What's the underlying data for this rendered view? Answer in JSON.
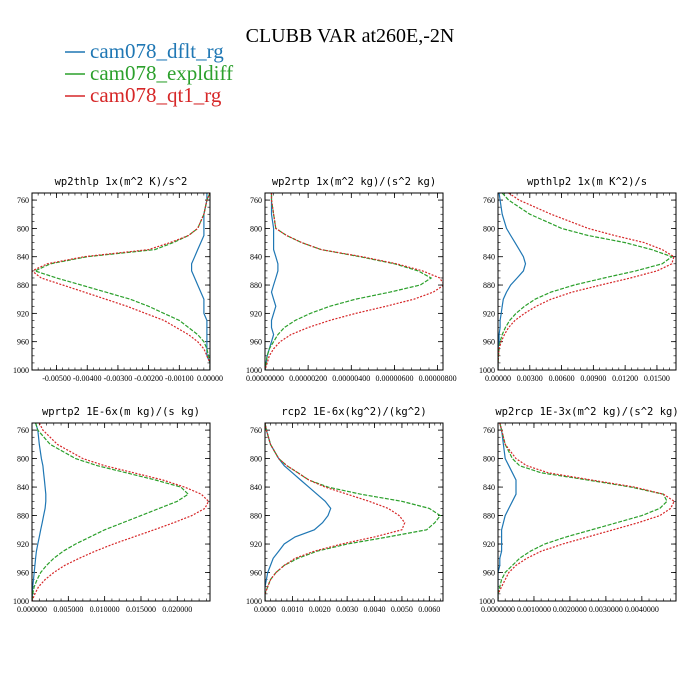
{
  "title": "CLUBB VAR at260E,-2N",
  "colors": {
    "dflt": "#1f77b4",
    "expl": "#2ca02c",
    "qt1": "#d62728"
  },
  "legend": [
    {
      "key": "dflt",
      "label": "cam078_dflt_rg"
    },
    {
      "key": "expl",
      "label": "cam078_expldiff"
    },
    {
      "key": "qt1",
      "label": "cam078_qt1_rg"
    }
  ],
  "chart_data": [
    {
      "type": "line",
      "title": "wp2thlp   1x(m^2 K)/s^2",
      "ylim": [
        1000,
        750
      ],
      "yticks": [
        "760",
        "800",
        "840",
        "880",
        "920",
        "960",
        "1000"
      ],
      "xlim": [
        -0.0058,
        0.0
      ],
      "xticks": [
        "-0.00500",
        "-0.00400",
        "-0.00300",
        "-0.00200",
        "-0.00100",
        "0.00000"
      ],
      "y": [
        750,
        760,
        780,
        800,
        810,
        820,
        830,
        840,
        850,
        860,
        870,
        880,
        890,
        900,
        910,
        920,
        930,
        940,
        950,
        960,
        970,
        980,
        990,
        1000
      ],
      "series": [
        {
          "key": "dflt",
          "values": [
            -0.0001,
            -0.0001,
            -0.0002,
            -0.0002,
            -0.0002,
            -0.0003,
            -0.0004,
            -0.0005,
            -0.0006,
            -0.0006,
            -0.0005,
            -0.0004,
            -0.0003,
            -0.0002,
            -0.0002,
            -0.0002,
            -0.0001,
            -0.0001,
            -0.0001,
            -0.0001,
            -0.0001,
            -0.0001,
            0.0,
            0.0
          ]
        },
        {
          "key": "expl",
          "values": [
            0.0,
            -0.0001,
            -0.0002,
            -0.0004,
            -0.0007,
            -0.0012,
            -0.0018,
            -0.004,
            -0.0052,
            -0.0057,
            -0.005,
            -0.0042,
            -0.0034,
            -0.0026,
            -0.002,
            -0.0015,
            -0.001,
            -0.0007,
            -0.0004,
            -0.0002,
            -0.0001,
            -5e-05,
            0.0,
            0.0
          ]
        },
        {
          "key": "qt1",
          "values": [
            0.0,
            -0.0001,
            -0.0002,
            -0.0004,
            -0.0007,
            -0.0013,
            -0.002,
            -0.0041,
            -0.0053,
            -0.0058,
            -0.0055,
            -0.0048,
            -0.0041,
            -0.0034,
            -0.0027,
            -0.0021,
            -0.0015,
            -0.0011,
            -0.0007,
            -0.0004,
            -0.0002,
            -0.0001,
            0.0,
            0.0
          ]
        }
      ]
    },
    {
      "type": "line",
      "title": "wp2rtp   1x(m^2 kg)/(s^2 kg)",
      "ylim": [
        1000,
        750
      ],
      "yticks": [
        "760",
        "800",
        "840",
        "880",
        "920",
        "960",
        "1000"
      ],
      "xlim": [
        0.0,
        8.25e-06
      ],
      "xticks": [
        "0.00000000",
        "0.00000200",
        "0.00000400",
        "0.00000600",
        "0.00000800"
      ],
      "y": [
        750,
        760,
        780,
        800,
        810,
        820,
        830,
        840,
        850,
        860,
        870,
        880,
        890,
        900,
        910,
        920,
        930,
        940,
        950,
        960,
        970,
        980,
        990,
        1000
      ],
      "series": [
        {
          "key": "dflt",
          "values": [
            3e-07,
            3e-07,
            3e-07,
            4e-07,
            4e-07,
            4e-07,
            4e-07,
            5e-07,
            6e-07,
            6e-07,
            5e-07,
            4e-07,
            3e-07,
            4e-07,
            5e-07,
            4e-07,
            3e-07,
            3e-07,
            4e-07,
            3e-07,
            2e-07,
            1e-07,
            5e-08,
            0.0
          ]
        },
        {
          "key": "expl",
          "values": [
            3e-07,
            3e-07,
            4e-07,
            5e-07,
            1e-06,
            1.7e-06,
            2.6e-06,
            4.4e-06,
            6e-06,
            7.1e-06,
            7.7e-06,
            7.2e-06,
            5.8e-06,
            4.2e-06,
            3e-06,
            2.1e-06,
            1.4e-06,
            9e-07,
            6e-07,
            4e-07,
            2e-07,
            1e-07,
            5e-08,
            0.0
          ]
        },
        {
          "key": "qt1",
          "values": [
            3e-07,
            3e-07,
            4e-07,
            5e-07,
            1e-06,
            1.7e-06,
            2.6e-06,
            4.5e-06,
            6.1e-06,
            7.3e-06,
            8.1e-06,
            8.3e-06,
            7.8e-06,
            6.9e-06,
            5.6e-06,
            4.2e-06,
            3e-06,
            2e-06,
            1.2e-06,
            7e-07,
            4e-07,
            2e-07,
            1e-07,
            0.0
          ]
        }
      ]
    },
    {
      "type": "line",
      "title": "wpthlp2   1x(m K^2)/s",
      "ylim": [
        1000,
        750
      ],
      "yticks": [
        "760",
        "800",
        "840",
        "880",
        "920",
        "960",
        "1000"
      ],
      "xlim": [
        0.0,
        0.0168
      ],
      "xticks": [
        "0.00000",
        "0.00300",
        "0.00600",
        "0.00900",
        "0.01200",
        "0.01500"
      ],
      "y": [
        750,
        760,
        780,
        800,
        810,
        820,
        830,
        840,
        850,
        860,
        870,
        880,
        890,
        900,
        910,
        920,
        930,
        940,
        950,
        960,
        970,
        980,
        990,
        1000
      ],
      "series": [
        {
          "key": "dflt",
          "values": [
            0.0001,
            0.0002,
            0.0004,
            0.0008,
            0.0012,
            0.0016,
            0.002,
            0.0024,
            0.0026,
            0.0024,
            0.0018,
            0.0012,
            0.0008,
            0.0005,
            0.0004,
            0.0003,
            0.0002,
            0.0002,
            0.0001,
            0.0001,
            0.0,
            0.0,
            0.0,
            0.0
          ]
        },
        {
          "key": "expl",
          "values": [
            0.0004,
            0.001,
            0.003,
            0.006,
            0.0085,
            0.012,
            0.0145,
            0.0164,
            0.0155,
            0.013,
            0.01,
            0.0072,
            0.005,
            0.0035,
            0.0025,
            0.0017,
            0.0011,
            0.0007,
            0.0004,
            0.0002,
            0.0001,
            5e-05,
            0.0,
            0.0
          ]
        },
        {
          "key": "qt1",
          "values": [
            0.001,
            0.002,
            0.005,
            0.0085,
            0.011,
            0.0138,
            0.0155,
            0.0166,
            0.0164,
            0.015,
            0.0125,
            0.0097,
            0.007,
            0.005,
            0.0036,
            0.0025,
            0.0016,
            0.001,
            0.0006,
            0.0003,
            0.0001,
            5e-05,
            0.0,
            0.0
          ]
        }
      ]
    },
    {
      "type": "line",
      "title": "wprtp2   1E-6x(m kg)/(s kg)",
      "ylim": [
        1000,
        750
      ],
      "yticks": [
        "760",
        "800",
        "840",
        "880",
        "920",
        "960",
        "1000"
      ],
      "xlim": [
        0.0,
        0.0245
      ],
      "xticks": [
        "0.000000",
        "0.005000",
        "0.010000",
        "0.015000",
        "0.020000"
      ],
      "y": [
        750,
        760,
        780,
        800,
        810,
        820,
        830,
        840,
        850,
        860,
        870,
        880,
        890,
        900,
        910,
        920,
        930,
        940,
        950,
        960,
        970,
        980,
        990,
        1000
      ],
      "series": [
        {
          "key": "dflt",
          "values": [
            0.0005,
            0.0008,
            0.001,
            0.0013,
            0.0015,
            0.0016,
            0.0017,
            0.0018,
            0.0019,
            0.0019,
            0.0018,
            0.0016,
            0.0014,
            0.0012,
            0.001,
            0.0008,
            0.0006,
            0.0005,
            0.0004,
            0.0003,
            0.0002,
            0.0001,
            5e-05,
            0.0
          ]
        },
        {
          "key": "expl",
          "values": [
            0.0005,
            0.0008,
            0.0025,
            0.006,
            0.009,
            0.013,
            0.017,
            0.0205,
            0.0215,
            0.02,
            0.0175,
            0.015,
            0.0125,
            0.01,
            0.008,
            0.006,
            0.0043,
            0.003,
            0.002,
            0.0012,
            0.0007,
            0.0003,
            0.0001,
            0.0
          ]
        },
        {
          "key": "qt1",
          "values": [
            0.001,
            0.0015,
            0.0035,
            0.007,
            0.01,
            0.014,
            0.018,
            0.021,
            0.0233,
            0.0243,
            0.0238,
            0.022,
            0.0195,
            0.0168,
            0.014,
            0.0112,
            0.0087,
            0.0065,
            0.0045,
            0.003,
            0.0018,
            0.0009,
            0.0004,
            0.0
          ]
        }
      ]
    },
    {
      "type": "line",
      "title": "rcp2   1E-6x(kg^2)/(kg^2)",
      "ylim": [
        1000,
        750
      ],
      "yticks": [
        "760",
        "800",
        "840",
        "880",
        "920",
        "960",
        "1000"
      ],
      "xlim": [
        0.0,
        0.0065
      ],
      "xticks": [
        "0.0000",
        "0.0010",
        "0.0020",
        "0.0030",
        "0.0040",
        "0.0050",
        "0.0060"
      ],
      "y": [
        750,
        760,
        780,
        800,
        810,
        820,
        830,
        840,
        850,
        860,
        870,
        880,
        890,
        900,
        910,
        920,
        930,
        940,
        950,
        960,
        970,
        980,
        990,
        1000
      ],
      "series": [
        {
          "key": "dflt",
          "values": [
            0.0,
            5e-05,
            0.0002,
            0.0005,
            0.0007,
            0.001,
            0.0013,
            0.0016,
            0.0019,
            0.0022,
            0.0024,
            0.0023,
            0.0021,
            0.0018,
            0.0011,
            0.0007,
            0.0005,
            0.0003,
            0.0002,
            0.0001,
            5e-05,
            0.0,
            0.0,
            0.0
          ]
        },
        {
          "key": "expl",
          "values": [
            0.0,
            5e-05,
            0.0002,
            0.0005,
            0.0008,
            0.0012,
            0.0016,
            0.0023,
            0.0035,
            0.005,
            0.006,
            0.0064,
            0.0062,
            0.0059,
            0.0045,
            0.003,
            0.0019,
            0.0012,
            0.0007,
            0.0004,
            0.0002,
            0.0001,
            0.0,
            0.0
          ]
        },
        {
          "key": "qt1",
          "values": [
            0.0,
            5e-05,
            0.0002,
            0.0005,
            0.0008,
            0.0012,
            0.0016,
            0.0022,
            0.003,
            0.0038,
            0.0045,
            0.0049,
            0.0051,
            0.005,
            0.004,
            0.0028,
            0.0018,
            0.0011,
            0.0007,
            0.0004,
            0.0002,
            0.0001,
            0.0,
            0.0
          ]
        }
      ]
    },
    {
      "type": "line",
      "title": "wp2rcp   1E-3x(m^2 kg)/(s^2 kg)",
      "ylim": [
        1000,
        750
      ],
      "yticks": [
        "760",
        "800",
        "840",
        "880",
        "920",
        "960",
        "1000"
      ],
      "xlim": [
        0.0,
        0.00495
      ],
      "xticks": [
        "0.0000000",
        "0.0010000",
        "0.0020000",
        "0.0030000",
        "0.0040000"
      ],
      "y": [
        750,
        760,
        780,
        800,
        810,
        820,
        830,
        840,
        850,
        860,
        870,
        880,
        890,
        900,
        910,
        920,
        930,
        940,
        950,
        960,
        970,
        980,
        990,
        1000
      ],
      "series": [
        {
          "key": "dflt",
          "values": [
            5e-05,
            0.0001,
            0.00015,
            0.0002,
            0.0003,
            0.0004,
            0.0005,
            0.0005,
            0.0005,
            0.0004,
            0.0003,
            0.0002,
            0.00015,
            0.0001,
            0.0001,
            0.0001,
            0.0001,
            5e-05,
            5e-05,
            0.0,
            0.0,
            0.0,
            0.0,
            0.0
          ]
        },
        {
          "key": "expl",
          "values": [
            5e-05,
            0.0001,
            0.0002,
            0.0004,
            0.0006,
            0.0012,
            0.0025,
            0.0037,
            0.0046,
            0.0047,
            0.0045,
            0.004,
            0.0033,
            0.0026,
            0.0019,
            0.0013,
            0.0009,
            0.0006,
            0.0004,
            0.0002,
            0.0001,
            5e-05,
            0.0,
            0.0
          ]
        },
        {
          "key": "qt1",
          "values": [
            5e-05,
            0.0001,
            0.0002,
            0.0005,
            0.0008,
            0.0014,
            0.0026,
            0.0038,
            0.0046,
            0.0049,
            0.0048,
            0.0045,
            0.0039,
            0.0032,
            0.0025,
            0.0018,
            0.0012,
            0.0008,
            0.0005,
            0.0003,
            0.0002,
            0.0001,
            0.0,
            0.0
          ]
        }
      ]
    }
  ]
}
